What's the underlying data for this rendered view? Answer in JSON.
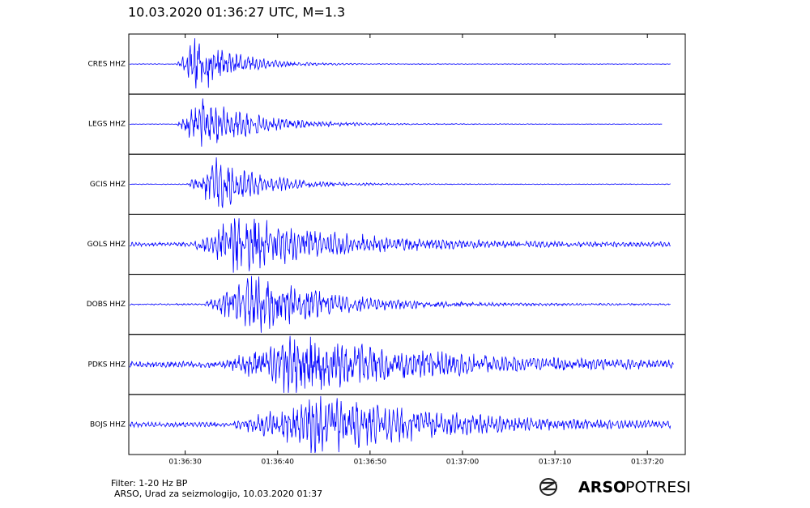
{
  "chart_data": {
    "type": "seismogram",
    "title": "10.03.2020  01:36:27 UTC, M=1.3",
    "categories": [
      "CRES HHZ",
      "LEGS HHZ",
      "GCIS HHZ",
      "GOLS HHZ",
      "DOBS HHZ",
      "PDKS HHZ",
      "BOJS HHZ"
    ],
    "color": "#0000ff",
    "xlim": [
      5783.9,
      5844.1
    ],
    "xticks": [
      {
        "value": 5790,
        "label": "01:36:30"
      },
      {
        "value": 5800,
        "label": "01:36:40"
      },
      {
        "value": 5810,
        "label": "01:36:50"
      },
      {
        "value": 5820,
        "label": "01:37:00"
      },
      {
        "value": 5830,
        "label": "01:37:10"
      },
      {
        "value": 5840,
        "label": "01:37:20"
      }
    ]
  },
  "footer": {
    "filter": "Filter: 1-20 Hz BP",
    "credit": "ARSO, Urad za seizmologijo, 10.03.2020  01:37"
  },
  "logo": {
    "bold": "ARSO",
    "light": "POTRESI"
  }
}
